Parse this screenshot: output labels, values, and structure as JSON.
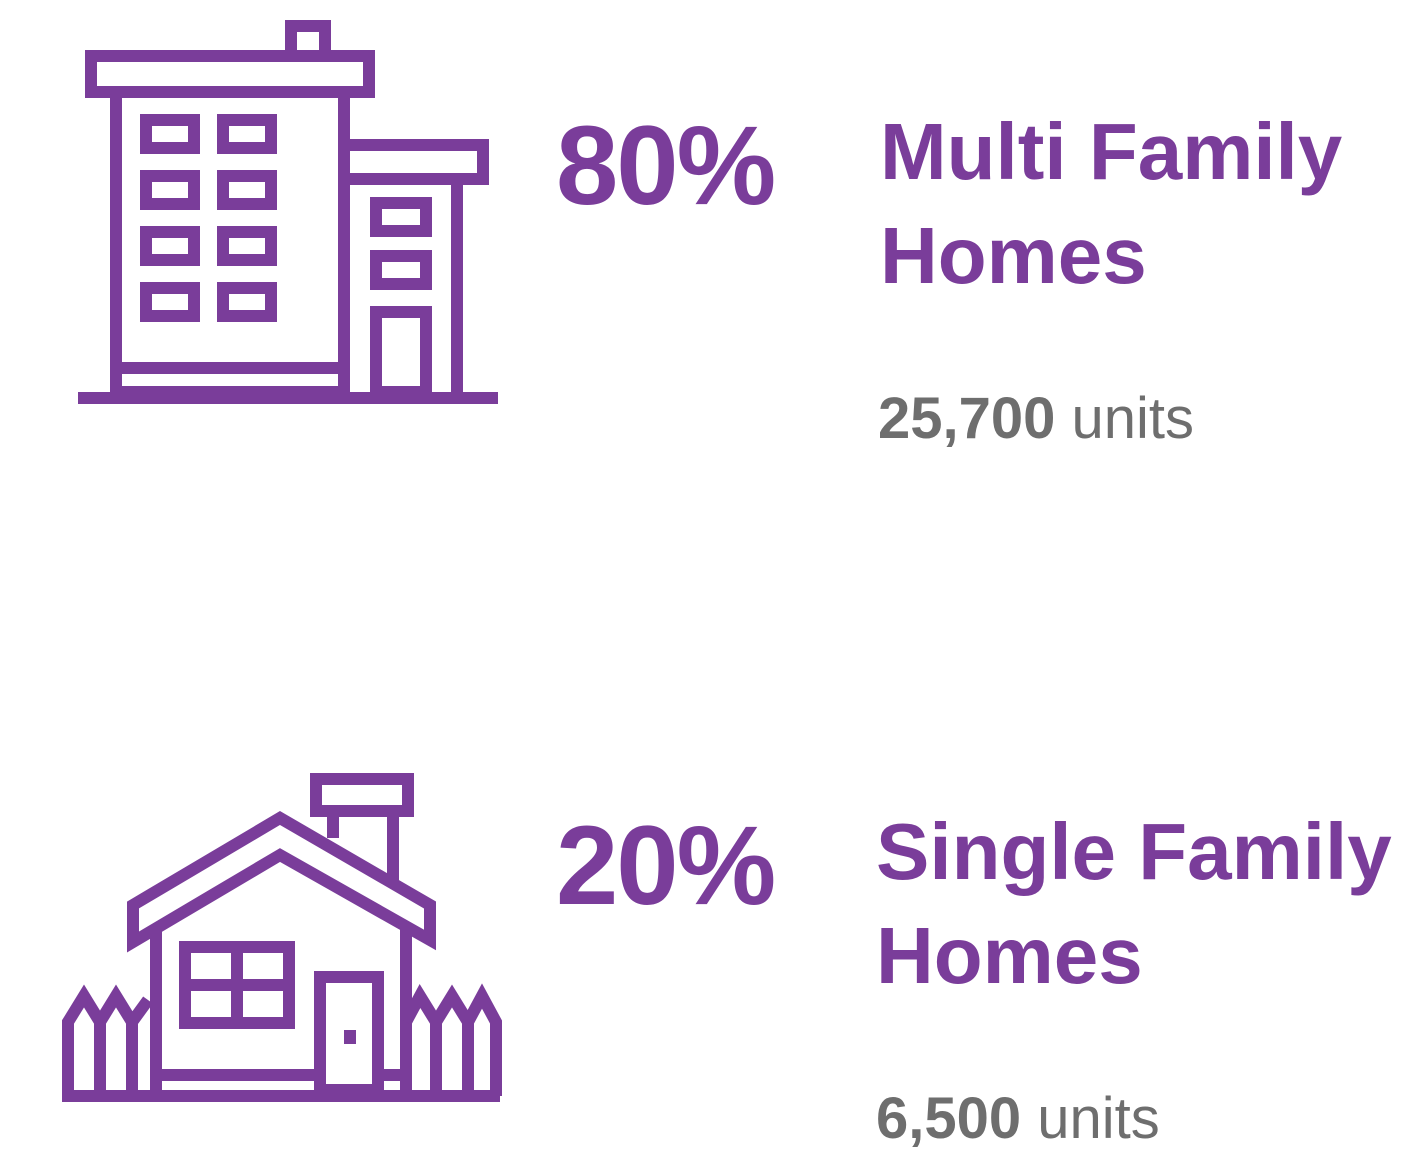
{
  "items": [
    {
      "percent": "80%",
      "title": "Multi Family Homes",
      "count": "25,700",
      "unit": "units"
    },
    {
      "percent": "20%",
      "title": "Single Family Homes",
      "count": "6,500",
      "unit": "units"
    }
  ]
}
